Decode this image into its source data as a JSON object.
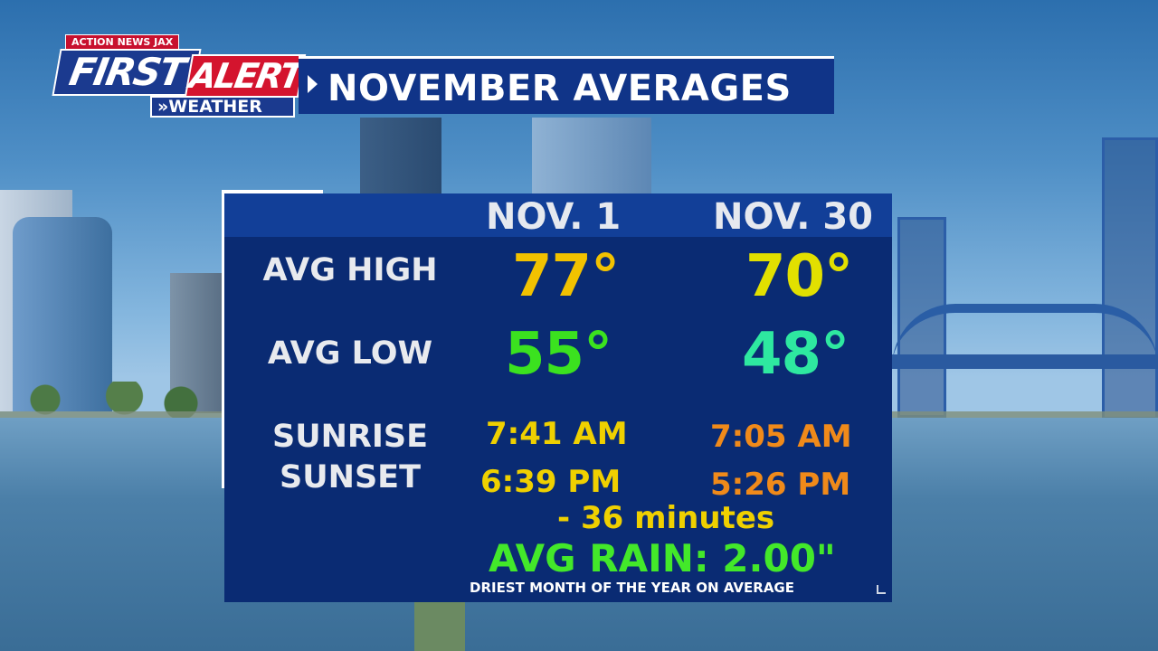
{
  "brand": {
    "station": "ACTION NEWS JAX",
    "first": "FIRST",
    "alert": "ALERT",
    "weather": "»WEATHER"
  },
  "title": "NOVEMBER AVERAGES",
  "columns": [
    "NOV. 1",
    "NOV. 30"
  ],
  "rows": {
    "avg_high": {
      "label": "AVG HIGH",
      "nov1": "77°",
      "nov30": "70°"
    },
    "avg_low": {
      "label": "AVG LOW",
      "nov1": "55°",
      "nov30": "48°"
    },
    "sunrise": {
      "label": "SUNRISE",
      "nov1": "7:41 AM",
      "nov30": "7:05 AM"
    },
    "sunset": {
      "label": "SUNSET",
      "nov1": "6:39 PM",
      "nov30": "5:26 PM"
    }
  },
  "daylight_change": "- 36 minutes",
  "avg_rain": "AVG RAIN: 2.00\"",
  "footnote": "DRIEST MONTH OF THE YEAR ON AVERAGE",
  "colors": {
    "panel": "#0f3a93",
    "title_bar": "#103488",
    "high_nov1": "#f2c200",
    "high_nov30": "#e2e000",
    "low_nov1": "#3be21f",
    "low_nov30": "#2ee8a0",
    "sun_nov1": "#efd000",
    "sun_nov30": "#f08a1a",
    "rain": "#43e82a",
    "alert_red": "#d4142e"
  }
}
